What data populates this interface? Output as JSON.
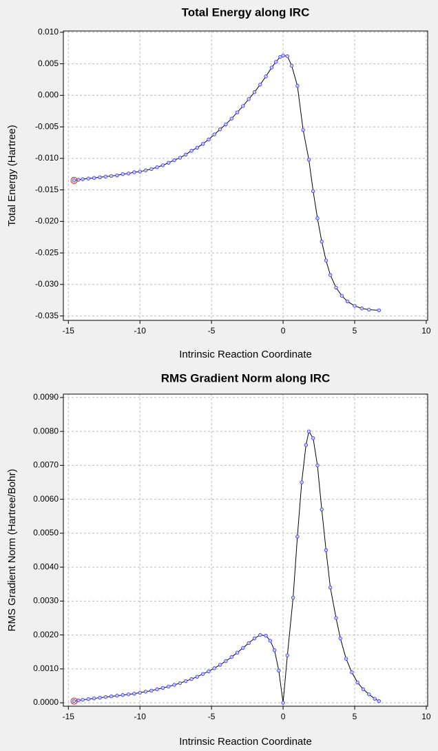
{
  "chart_data": [
    {
      "type": "line",
      "title": "Total Energy along IRC",
      "x_label": "Intrinsic Reaction Coordinate",
      "y_label": "Total Energy (Hartree)",
      "x": [
        -14.6,
        -14.3,
        -14.0,
        -13.6,
        -13.2,
        -12.8,
        -12.4,
        -12.0,
        -11.6,
        -11.2,
        -10.8,
        -10.4,
        -10.0,
        -9.6,
        -9.2,
        -8.8,
        -8.4,
        -8.0,
        -7.6,
        -7.2,
        -6.8,
        -6.4,
        -6.0,
        -5.6,
        -5.2,
        -4.8,
        -4.4,
        -4.0,
        -3.6,
        -3.2,
        -2.8,
        -2.4,
        -2.0,
        -1.6,
        -1.2,
        -0.8,
        -0.5,
        -0.2,
        0.0,
        0.3,
        0.6,
        1.0,
        1.4,
        1.8,
        2.1,
        2.4,
        2.7,
        3.0,
        3.3,
        3.7,
        4.1,
        4.5,
        5.0,
        5.5,
        6.0,
        6.7
      ],
      "series": [
        {
          "name": "Total Energy",
          "color": "#000000",
          "marker_color": "#3333ff",
          "values": [
            -0.0135,
            -0.0134,
            -0.0133,
            -0.0132,
            -0.0131,
            -0.013,
            -0.0129,
            -0.0128,
            -0.0127,
            -0.0125,
            -0.0124,
            -0.0122,
            -0.0121,
            -0.0119,
            -0.0117,
            -0.0114,
            -0.0111,
            -0.0107,
            -0.0103,
            -0.0099,
            -0.0094,
            -0.0088,
            -0.0083,
            -0.0077,
            -0.007,
            -0.0062,
            -0.0054,
            -0.0046,
            -0.0037,
            -0.0027,
            -0.0017,
            -0.0006,
            0.0005,
            0.0017,
            0.003,
            0.0044,
            0.0053,
            0.0061,
            0.0063,
            0.0062,
            0.0047,
            0.0015,
            -0.0055,
            -0.0102,
            -0.0152,
            -0.0195,
            -0.0232,
            -0.0262,
            -0.0285,
            -0.0305,
            -0.0318,
            -0.0327,
            -0.0334,
            -0.0338,
            -0.034,
            -0.0341
          ]
        }
      ],
      "highlight_color": "#ff0000",
      "xlim": [
        -15.35,
        10.1
      ],
      "xticks": [
        -15,
        -10,
        -5,
        0,
        5,
        10
      ],
      "ylim": [
        -0.0357,
        0.0102
      ],
      "yticks": [
        {
          "value": 0.01,
          "label": "0.010"
        },
        {
          "value": 0.005,
          "label": "0.005"
        },
        {
          "value": 0,
          "label": "0.000"
        },
        {
          "value": -0.005,
          "label": "-0.005"
        },
        {
          "value": -0.01,
          "label": "-0.010"
        },
        {
          "value": -0.015,
          "label": "-0.015"
        },
        {
          "value": -0.02,
          "label": "-0.020"
        },
        {
          "value": -0.025,
          "label": "-0.025"
        },
        {
          "value": -0.03,
          "label": "-0.030"
        },
        {
          "value": -0.035,
          "label": "-0.035"
        }
      ],
      "grid": true
    },
    {
      "type": "line",
      "title": "RMS Gradient Norm along IRC",
      "x_label": "Intrinsic Reaction Coordinate",
      "y_label": "RMS Gradient Norm (Hartree/Bohr)",
      "x": [
        -14.6,
        -14.3,
        -14.0,
        -13.6,
        -13.2,
        -12.8,
        -12.4,
        -12.0,
        -11.6,
        -11.2,
        -10.8,
        -10.4,
        -10.0,
        -9.6,
        -9.2,
        -8.8,
        -8.4,
        -8.0,
        -7.6,
        -7.2,
        -6.8,
        -6.4,
        -6.0,
        -5.6,
        -5.2,
        -4.8,
        -4.4,
        -4.0,
        -3.6,
        -3.2,
        -2.8,
        -2.4,
        -2.0,
        -1.6,
        -1.2,
        -0.9,
        -0.6,
        -0.3,
        0.0,
        0.3,
        0.7,
        1.0,
        1.3,
        1.6,
        1.8,
        2.1,
        2.4,
        2.7,
        3.0,
        3.3,
        3.7,
        4.0,
        4.4,
        4.8,
        5.2,
        5.6,
        6.0,
        6.4,
        6.7
      ],
      "series": [
        {
          "name": "RMS Gradient Norm",
          "color": "#000000",
          "marker_color": "#3333ff",
          "values": [
            5e-05,
            7e-05,
            9e-05,
            0.00011,
            0.00013,
            0.00015,
            0.00017,
            0.00019,
            0.00021,
            0.00023,
            0.00025,
            0.00027,
            0.0003,
            0.00033,
            0.00036,
            0.0004,
            0.00044,
            0.00048,
            0.00053,
            0.00058,
            0.00064,
            0.0007,
            0.00077,
            0.00085,
            0.00093,
            0.00102,
            0.00112,
            0.00123,
            0.00135,
            0.00148,
            0.00162,
            0.00176,
            0.0019,
            0.002,
            0.00198,
            0.00183,
            0.00155,
            0.00095,
            0.0,
            0.0014,
            0.0031,
            0.0049,
            0.0065,
            0.0076,
            0.008,
            0.0078,
            0.007,
            0.0057,
            0.0045,
            0.0034,
            0.0025,
            0.0019,
            0.0013,
            0.0009,
            0.0006,
            0.0004,
            0.00025,
            0.00012,
            5e-05
          ]
        }
      ],
      "highlight_color": "#ff0000",
      "xlim": [
        -15.35,
        10.1
      ],
      "xticks": [
        -15,
        -10,
        -5,
        0,
        5,
        10
      ],
      "ylim": [
        -0.0001,
        0.0091
      ],
      "yticks": [
        {
          "value": 0.009,
          "label": "0.0090"
        },
        {
          "value": 0.008,
          "label": "0.0080"
        },
        {
          "value": 0.007,
          "label": "0.0070"
        },
        {
          "value": 0.006,
          "label": "0.0060"
        },
        {
          "value": 0.005,
          "label": "0.0050"
        },
        {
          "value": 0.004,
          "label": "0.0040"
        },
        {
          "value": 0.003,
          "label": "0.0030"
        },
        {
          "value": 0.002,
          "label": "0.0020"
        },
        {
          "value": 0.001,
          "label": "0.0010"
        },
        {
          "value": 0,
          "label": "0.0000"
        }
      ],
      "grid": true
    }
  ]
}
